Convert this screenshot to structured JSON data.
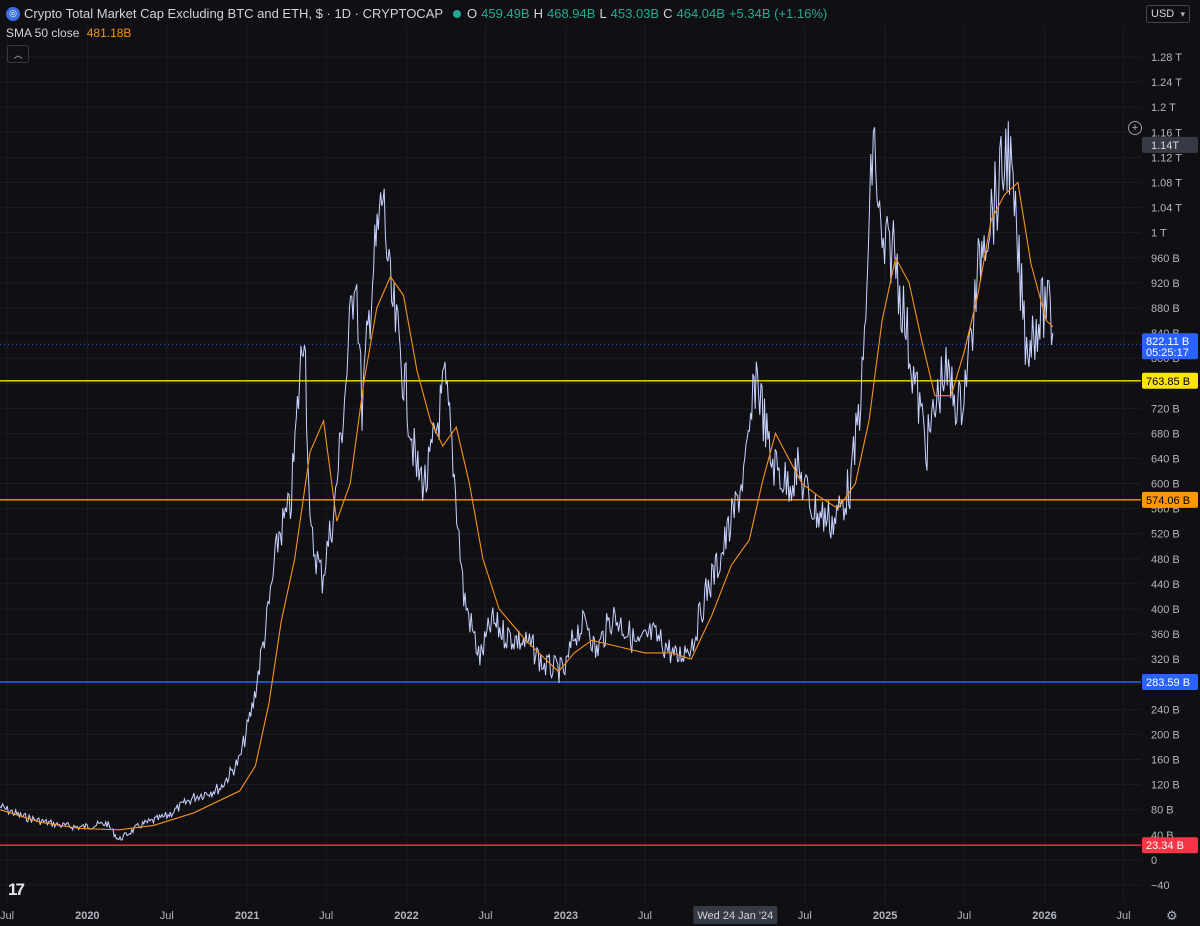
{
  "header": {
    "title": "Crypto Total Market Cap Excluding BTC and ETH, $ · 1D · CRYPTOCAP",
    "ohlc": {
      "open_label": "O",
      "open": "459.49B",
      "high_label": "H",
      "high": "468.94B",
      "low_label": "L",
      "low": "453.03B",
      "close_label": "C",
      "close": "464.04B",
      "change": "+5.34B (+1.16%)"
    },
    "indicator_label": "SMA 50 close",
    "indicator_value": "481.18B",
    "currency": "USD"
  },
  "crosshair": {
    "date_label": "Wed 24 Jan '24",
    "price_label": "1.14T"
  },
  "icons": {
    "logo": "tradingview-logo",
    "settings": "gear-icon",
    "collapse": "chevron-up-icon",
    "add": "plus-icon"
  },
  "colors": {
    "background": "#0f0f14",
    "price_line": "#c9d3ff",
    "sma": "#f7931a",
    "grid": "#1b1d26",
    "level_yellow": "#ffe600",
    "level_orange": "#ff9800",
    "level_blue": "#2962ff",
    "level_red": "#f23645",
    "current_price_tag": "#2962ff"
  },
  "chart_data": {
    "type": "line",
    "title": "Crypto Total Market Cap Excluding BTC and ETH, $ · 1D · CRYPTOCAP",
    "y_unit": "USD billions",
    "ylim": [
      -60,
      1300
    ],
    "y_ticks": [
      {
        "value": -40,
        "label": "−40"
      },
      {
        "value": 0,
        "label": "0"
      },
      {
        "value": 40,
        "label": "40 B"
      },
      {
        "value": 80,
        "label": "80 B"
      },
      {
        "value": 120,
        "label": "120 B"
      },
      {
        "value": 160,
        "label": "160 B"
      },
      {
        "value": 200,
        "label": "200 B"
      },
      {
        "value": 240,
        "label": "240 B"
      },
      {
        "value": 280,
        "label": "280 B"
      },
      {
        "value": 320,
        "label": "320 B"
      },
      {
        "value": 360,
        "label": "360 B"
      },
      {
        "value": 400,
        "label": "400 B"
      },
      {
        "value": 440,
        "label": "440 B"
      },
      {
        "value": 480,
        "label": "480 B"
      },
      {
        "value": 520,
        "label": "520 B"
      },
      {
        "value": 560,
        "label": "560 B"
      },
      {
        "value": 600,
        "label": "600 B"
      },
      {
        "value": 640,
        "label": "640 B"
      },
      {
        "value": 680,
        "label": "680 B"
      },
      {
        "value": 720,
        "label": "720 B"
      },
      {
        "value": 760,
        "label": "760 B"
      },
      {
        "value": 800,
        "label": "800 B"
      },
      {
        "value": 840,
        "label": "840 B"
      },
      {
        "value": 880,
        "label": "880 B"
      },
      {
        "value": 920,
        "label": "920 B"
      },
      {
        "value": 960,
        "label": "960 B"
      },
      {
        "value": 1000,
        "label": "1 T"
      },
      {
        "value": 1040,
        "label": "1.04 T"
      },
      {
        "value": 1080,
        "label": "1.08 T"
      },
      {
        "value": 1120,
        "label": "1.12 T"
      },
      {
        "value": 1160,
        "label": "1.16 T"
      },
      {
        "value": 1200,
        "label": "1.2 T"
      },
      {
        "value": 1240,
        "label": "1.24 T"
      },
      {
        "value": 1280,
        "label": "1.28 T"
      }
    ],
    "x_ticks": [
      {
        "date": "2019-07",
        "label": "Jul"
      },
      {
        "date": "2020-01",
        "label": "2020"
      },
      {
        "date": "2020-07",
        "label": "Jul"
      },
      {
        "date": "2021-01",
        "label": "2021"
      },
      {
        "date": "2021-07",
        "label": "Jul"
      },
      {
        "date": "2022-01",
        "label": "2022"
      },
      {
        "date": "2022-07",
        "label": "Jul"
      },
      {
        "date": "2023-01",
        "label": "2023"
      },
      {
        "date": "2023-07",
        "label": "Jul"
      },
      {
        "date": "2024-07",
        "label": "Jul"
      },
      {
        "date": "2025-01",
        "label": "2025"
      },
      {
        "date": "2025-07",
        "label": "Jul"
      },
      {
        "date": "2026-01",
        "label": "2026"
      },
      {
        "date": "2026-07",
        "label": "Jul"
      }
    ],
    "x_range": [
      "2019-06-15",
      "2026-08-10"
    ],
    "horizontal_levels": [
      {
        "value": 763.85,
        "label": "763.85 B",
        "color": "#ffe600"
      },
      {
        "value": 574.06,
        "label": "574.06 B",
        "color": "#ff9800"
      },
      {
        "value": 283.59,
        "label": "283.59 B",
        "color": "#2962ff"
      },
      {
        "value": 23.34,
        "label": "23.34 B",
        "color": "#f23645"
      }
    ],
    "current_price": {
      "value": 822.11,
      "label": "822.11 B",
      "countdown": "05:25:17"
    },
    "series": [
      {
        "name": "Crypto Total Market Cap Excluding BTC and ETH",
        "x": [
          "2019-06-15",
          "2019-08-01",
          "2019-09-15",
          "2019-11-01",
          "2019-12-15",
          "2020-02-15",
          "2020-03-13",
          "2020-05-01",
          "2020-07-01",
          "2020-09-01",
          "2020-11-01",
          "2020-12-15",
          "2021-01-15",
          "2021-02-15",
          "2021-03-15",
          "2021-04-10",
          "2021-05-12",
          "2021-05-25",
          "2021-06-22",
          "2021-07-20",
          "2021-08-15",
          "2021-09-06",
          "2021-09-21",
          "2021-10-15",
          "2021-11-08",
          "2021-11-25",
          "2021-12-15",
          "2022-01-05",
          "2022-01-24",
          "2022-02-15",
          "2022-03-30",
          "2022-04-15",
          "2022-05-12",
          "2022-06-18",
          "2022-07-15",
          "2022-08-13",
          "2022-09-15",
          "2022-10-15",
          "2022-11-10",
          "2022-12-30",
          "2023-01-20",
          "2023-02-20",
          "2023-03-10",
          "2023-04-18",
          "2023-05-15",
          "2023-06-15",
          "2023-07-15",
          "2023-08-20",
          "2023-09-11",
          "2023-10-20",
          "2023-11-15",
          "2023-12-20",
          "2024-01-24",
          "2024-02-20",
          "2024-03-12",
          "2024-04-13",
          "2024-05-20",
          "2024-06-15",
          "2024-07-20",
          "2024-08-05",
          "2024-09-07",
          "2024-10-15",
          "2024-11-12",
          "2024-12-05",
          "2024-12-25",
          "2025-01-20",
          "2025-02-15",
          "2025-03-10",
          "2025-04-07",
          "2025-05-15",
          "2025-06-22",
          "2025-07-15",
          "2025-08-13",
          "2025-09-15",
          "2025-10-10",
          "2025-11-01",
          "2025-11-21",
          "2025-12-10",
          "2026-01-05",
          "2026-01-20"
        ],
        "y": [
          85,
          70,
          62,
          55,
          52,
          58,
          32,
          55,
          70,
          100,
          115,
          160,
          250,
          380,
          520,
          560,
          870,
          520,
          450,
          560,
          760,
          960,
          720,
          930,
          1060,
          900,
          820,
          720,
          620,
          600,
          760,
          660,
          420,
          320,
          380,
          360,
          350,
          340,
          310,
          300,
          360,
          380,
          330,
          390,
          370,
          340,
          360,
          340,
          320,
          350,
          420,
          480,
          560,
          640,
          780,
          640,
          600,
          620,
          560,
          550,
          540,
          600,
          780,
          1160,
          960,
          980,
          860,
          760,
          660,
          780,
          720,
          820,
          1000,
          1060,
          1140,
          960,
          820,
          850,
          890,
          840
        ]
      },
      {
        "name": "SMA 50 close",
        "x": [
          "2019-06-15",
          "2019-09-15",
          "2019-12-15",
          "2020-03-13",
          "2020-06-01",
          "2020-09-01",
          "2020-12-15",
          "2021-01-20",
          "2021-02-20",
          "2021-03-20",
          "2021-04-20",
          "2021-05-25",
          "2021-06-25",
          "2021-07-25",
          "2021-08-25",
          "2021-09-25",
          "2021-10-25",
          "2021-11-25",
          "2021-12-25",
          "2022-01-25",
          "2022-02-25",
          "2022-03-25",
          "2022-04-25",
          "2022-05-25",
          "2022-06-25",
          "2022-08-01",
          "2022-10-01",
          "2022-12-15",
          "2023-01-20",
          "2023-03-01",
          "2023-05-01",
          "2023-07-01",
          "2023-09-01",
          "2023-10-15",
          "2023-12-01",
          "2024-01-15",
          "2024-02-25",
          "2024-03-25",
          "2024-04-25",
          "2024-05-25",
          "2024-06-25",
          "2024-08-01",
          "2024-09-15",
          "2024-10-25",
          "2024-11-25",
          "2024-12-25",
          "2025-01-25",
          "2025-02-25",
          "2025-03-25",
          "2025-04-25",
          "2025-06-01",
          "2025-07-01",
          "2025-08-01",
          "2025-09-01",
          "2025-10-01",
          "2025-11-01",
          "2025-12-01",
          "2026-01-05",
          "2026-01-20"
        ],
        "y": [
          80,
          60,
          50,
          48,
          55,
          75,
          110,
          150,
          250,
          380,
          480,
          650,
          700,
          540,
          600,
          760,
          880,
          930,
          900,
          780,
          700,
          660,
          690,
          600,
          480,
          400,
          350,
          300,
          330,
          350,
          340,
          330,
          330,
          320,
          390,
          470,
          510,
          600,
          680,
          640,
          600,
          580,
          560,
          600,
          700,
          860,
          960,
          920,
          830,
          740,
          740,
          810,
          900,
          1020,
          1060,
          1080,
          950,
          860,
          850
        ]
      }
    ]
  }
}
